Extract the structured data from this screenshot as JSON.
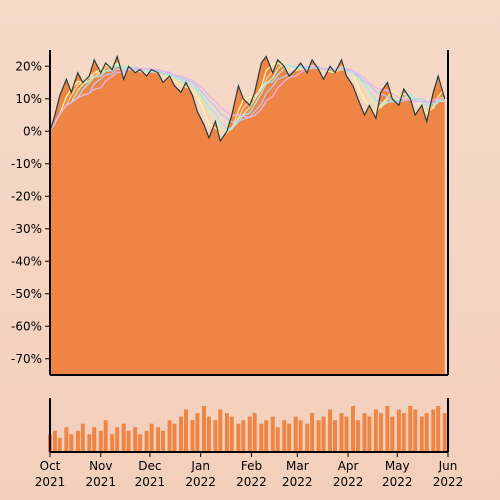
{
  "chart_data": {
    "type": "area",
    "title": "",
    "xlabel": "",
    "ylabel": "",
    "ylim": [
      -75,
      25
    ],
    "yticks": [
      20,
      10,
      0,
      -10,
      -20,
      -30,
      -40,
      -50,
      -60,
      -70
    ],
    "ytick_labels": [
      "20%",
      "10%",
      "0%",
      "-10%",
      "-20%",
      "-30%",
      "-40%",
      "-50%",
      "-60%",
      "-70%"
    ],
    "xlim": [
      "2021-10-01",
      "2022-06-01"
    ],
    "xticks": [
      "2021-10-01",
      "2021-11-01",
      "2021-12-01",
      "2022-01-01",
      "2022-02-01",
      "2022-03-01",
      "2022-04-01",
      "2022-05-01",
      "2022-06-01"
    ],
    "xtick_labels": [
      [
        "Oct",
        "2021"
      ],
      [
        "Nov",
        "2021"
      ],
      [
        "Dec",
        "2021"
      ],
      [
        "Jan",
        "2022"
      ],
      [
        "Feb",
        "2022"
      ],
      [
        "Mar",
        "2022"
      ],
      [
        "Apr",
        "2022"
      ],
      [
        "May",
        "2022"
      ],
      [
        "Jun",
        "2022"
      ]
    ],
    "grid": false,
    "legend": "none",
    "colors": {
      "area": "#ef8545",
      "price_line": "#243c3c",
      "volume": "#ef8545",
      "moving_averages": [
        "#fff6a8",
        "#f8d7a0",
        "#c8f0c4",
        "#a8e4e8",
        "#b8c8f4",
        "#e6b4ec"
      ]
    },
    "series": [
      {
        "x": [
          "2021-10-01",
          "2021-10-04",
          "2021-10-07",
          "2021-10-11",
          "2021-10-14",
          "2021-10-18",
          "2021-10-21",
          "2021-10-25",
          "2021-10-28",
          "2021-11-01",
          "2021-11-04",
          "2021-11-08",
          "2021-11-11",
          "2021-11-15",
          "2021-11-18",
          "2021-11-22",
          "2021-11-25",
          "2021-11-29",
          "2021-12-02",
          "2021-12-06",
          "2021-12-09",
          "2021-12-13",
          "2021-12-16",
          "2021-12-20",
          "2021-12-23",
          "2021-12-27",
          "2021-12-30",
          "2022-01-03",
          "2022-01-06",
          "2022-01-10",
          "2022-01-13",
          "2022-01-17",
          "2022-01-20",
          "2022-01-24",
          "2022-01-27",
          "2022-01-31",
          "2022-02-03",
          "2022-02-07",
          "2022-02-10",
          "2022-02-14",
          "2022-02-17",
          "2022-02-21",
          "2022-02-24",
          "2022-02-28",
          "2022-03-03",
          "2022-03-07",
          "2022-03-10",
          "2022-03-14",
          "2022-03-17",
          "2022-03-21",
          "2022-03-24",
          "2022-03-28",
          "2022-03-31",
          "2022-04-04",
          "2022-04-07",
          "2022-04-11",
          "2022-04-14",
          "2022-04-18",
          "2022-04-21",
          "2022-04-25",
          "2022-04-28",
          "2022-05-02",
          "2022-05-05",
          "2022-05-09",
          "2022-05-12",
          "2022-05-16",
          "2022-05-19",
          "2022-05-23",
          "2022-05-26",
          "2022-05-30"
        ],
        "y": [
          0,
          5,
          11,
          16,
          12,
          18,
          15,
          17,
          22,
          18,
          21,
          19,
          23,
          16,
          20,
          18,
          19,
          17,
          19,
          18,
          15,
          17,
          14,
          12,
          15,
          11,
          6,
          2,
          -2,
          3,
          -3,
          0,
          5,
          14,
          10,
          8,
          12,
          21,
          23,
          18,
          22,
          20,
          17,
          19,
          21,
          18,
          22,
          19,
          16,
          20,
          18,
          22,
          17,
          14,
          10,
          5,
          8,
          4,
          12,
          15,
          10,
          8,
          13,
          10,
          5,
          8,
          3,
          12,
          17,
          10
        ]
      }
    ],
    "volume": [
      5,
      6,
      4,
      7,
      5,
      6,
      8,
      5,
      7,
      6,
      9,
      5,
      7,
      8,
      6,
      7,
      5,
      6,
      8,
      7,
      6,
      9,
      8,
      10,
      12,
      9,
      11,
      13,
      10,
      9,
      12,
      11,
      10,
      8,
      9,
      10,
      11,
      8,
      9,
      10,
      7,
      9,
      8,
      10,
      9,
      8,
      11,
      9,
      10,
      12,
      9,
      11,
      10,
      13,
      9,
      11,
      10,
      12,
      11,
      13,
      10,
      12,
      11,
      13,
      12,
      10,
      11,
      12,
      13,
      11
    ]
  }
}
